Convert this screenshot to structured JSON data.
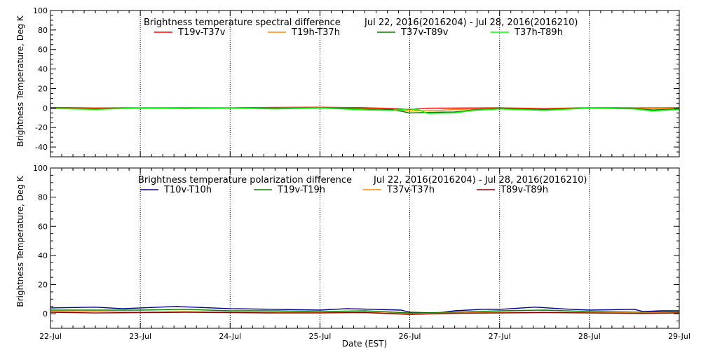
{
  "chart_data": [
    {
      "type": "line",
      "title": "Brightness temperature spectral difference",
      "date_range": "Jul 22, 2016(2016204) - Jul 28, 2016(2016210)",
      "ylabel": "Brightness Temperature, Deg K",
      "xlabel": "",
      "ylim": [
        -50,
        100
      ],
      "yticks": [
        -40,
        -20,
        0,
        20,
        40,
        60,
        80,
        100
      ],
      "xlim": [
        0,
        7
      ],
      "xticks": [
        0,
        1,
        2,
        3,
        4,
        5,
        6,
        7
      ],
      "xtick_labels": [],
      "grid": "vertical dotted at day boundaries",
      "series": [
        {
          "name": "T19v-T37v",
          "color": "#ff0000",
          "points": [
            [
              0,
              0.5
            ],
            [
              0.5,
              0
            ],
            [
              1,
              0.3
            ],
            [
              1.5,
              0.2
            ],
            [
              2,
              0.3
            ],
            [
              2.5,
              0.6
            ],
            [
              3,
              0.8
            ],
            [
              3.5,
              0.3
            ],
            [
              3.8,
              -0.5
            ],
            [
              4,
              -1.5
            ],
            [
              4.2,
              -0.2
            ],
            [
              4.5,
              0
            ],
            [
              5,
              0.2
            ],
            [
              5.5,
              -0.5
            ],
            [
              6,
              0.3
            ],
            [
              6.5,
              0.1
            ],
            [
              7,
              0.2
            ]
          ]
        },
        {
          "name": "T19h-T37h",
          "color": "#ff8c00",
          "points": [
            [
              0,
              0
            ],
            [
              0.5,
              -0.8
            ],
            [
              1,
              0
            ],
            [
              1.5,
              -0.3
            ],
            [
              2,
              0
            ],
            [
              2.5,
              0
            ],
            [
              3,
              0.5
            ],
            [
              3.5,
              -0.5
            ],
            [
              3.8,
              -1.2
            ],
            [
              4,
              -3
            ],
            [
              4.3,
              -2.5
            ],
            [
              4.5,
              -1.5
            ],
            [
              5,
              -0.5
            ],
            [
              5.5,
              -1
            ],
            [
              6,
              0
            ],
            [
              6.5,
              -0.5
            ],
            [
              7,
              -0.3
            ]
          ]
        },
        {
          "name": "T37v-T89v",
          "color": "#008000",
          "points": [
            [
              0,
              -0.5
            ],
            [
              0.5,
              -1
            ],
            [
              1,
              0
            ],
            [
              1.5,
              -0.5
            ],
            [
              2,
              0
            ],
            [
              2.5,
              -0.5
            ],
            [
              3,
              0.3
            ],
            [
              3.5,
              -1
            ],
            [
              3.8,
              -1.5
            ],
            [
              4,
              -5
            ],
            [
              4.2,
              -4.5
            ],
            [
              4.5,
              -4
            ],
            [
              4.7,
              -2
            ],
            [
              5,
              -0.5
            ],
            [
              5.5,
              -1.5
            ],
            [
              6,
              0
            ],
            [
              6.5,
              -0.5
            ],
            [
              6.7,
              -2
            ],
            [
              7,
              -1
            ]
          ]
        },
        {
          "name": "T37h-T89h",
          "color": "#00ff00",
          "points": [
            [
              0,
              -0.5
            ],
            [
              0.5,
              -1.5
            ],
            [
              1,
              0.2
            ],
            [
              1.5,
              -0.5
            ],
            [
              2,
              0.2
            ],
            [
              2.5,
              -1
            ],
            [
              3,
              0
            ],
            [
              3.5,
              -2
            ],
            [
              3.8,
              -2.5
            ],
            [
              4,
              -1
            ],
            [
              4.1,
              -2
            ],
            [
              4.2,
              -5.5
            ],
            [
              4.5,
              -5
            ],
            [
              4.7,
              -2.5
            ],
            [
              5,
              -1
            ],
            [
              5.5,
              -2.5
            ],
            [
              6,
              0
            ],
            [
              6.5,
              -1
            ],
            [
              6.7,
              -3
            ],
            [
              6.8,
              -2.5
            ],
            [
              7,
              -1.5
            ]
          ]
        }
      ]
    },
    {
      "type": "line",
      "title": "Brightness temperature polarization difference",
      "date_range": "Jul 22, 2016(2016204) - Jul 28, 2016(2016210)",
      "ylabel": "Brightness Temperature, Deg K",
      "xlabel": "Date (EST)",
      "ylim": [
        -10,
        100
      ],
      "yticks": [
        0,
        20,
        40,
        60,
        80,
        100
      ],
      "xlim": [
        0,
        7
      ],
      "xticks": [
        0,
        1,
        2,
        3,
        4,
        5,
        6,
        7
      ],
      "xtick_labels": [
        "22-Jul",
        "23-Jul",
        "24-Jul",
        "25-Jul",
        "26-Jul",
        "27-Jul",
        "28-Jul",
        "29-Jul"
      ],
      "grid": "vertical dotted at day boundaries",
      "series": [
        {
          "name": "T10v-T10h",
          "color": "#00008b",
          "points": [
            [
              0,
              4
            ],
            [
              0.5,
              4.5
            ],
            [
              0.8,
              3.5
            ],
            [
              1,
              4
            ],
            [
              1.4,
              5
            ],
            [
              1.8,
              4
            ],
            [
              2,
              3.5
            ],
            [
              2.5,
              3
            ],
            [
              3,
              2.5
            ],
            [
              3.3,
              3.5
            ],
            [
              3.6,
              3
            ],
            [
              3.9,
              2.5
            ],
            [
              4,
              1
            ],
            [
              4.3,
              0.5
            ],
            [
              4.5,
              2
            ],
            [
              4.8,
              3
            ],
            [
              5,
              3
            ],
            [
              5.4,
              4.5
            ],
            [
              5.8,
              3
            ],
            [
              6,
              2.5
            ],
            [
              6.5,
              3
            ],
            [
              6.6,
              1.5
            ],
            [
              6.8,
              2
            ],
            [
              7,
              2
            ]
          ]
        },
        {
          "name": "T19v-T19h",
          "color": "#008000",
          "points": [
            [
              0,
              2.5
            ],
            [
              0.5,
              2.5
            ],
            [
              1,
              2.5
            ],
            [
              1.5,
              3
            ],
            [
              2,
              2
            ],
            [
              2.5,
              2
            ],
            [
              3,
              1.5
            ],
            [
              3.5,
              2
            ],
            [
              4,
              0.5
            ],
            [
              4.5,
              1
            ],
            [
              5,
              2
            ],
            [
              5.5,
              2.5
            ],
            [
              6,
              1.5
            ],
            [
              6.6,
              1
            ],
            [
              7,
              1.5
            ]
          ]
        },
        {
          "name": "T37v-T37h",
          "color": "#ff8c00",
          "points": [
            [
              0,
              1.5
            ],
            [
              0.5,
              1.5
            ],
            [
              1,
              1
            ],
            [
              1.5,
              1.5
            ],
            [
              2,
              1
            ],
            [
              2.5,
              1
            ],
            [
              3,
              1
            ],
            [
              3.5,
              1
            ],
            [
              4,
              0
            ],
            [
              4.5,
              0.5
            ],
            [
              5,
              1
            ],
            [
              5.5,
              1
            ],
            [
              6,
              0.8
            ],
            [
              6.6,
              0.5
            ],
            [
              7,
              1
            ]
          ]
        },
        {
          "name": "T89v-T89h",
          "color": "#8b0000",
          "points": [
            [
              0,
              1
            ],
            [
              0.5,
              0.5
            ],
            [
              1,
              0.8
            ],
            [
              1.5,
              1
            ],
            [
              2,
              0.8
            ],
            [
              2.5,
              0.5
            ],
            [
              3,
              0.5
            ],
            [
              3.5,
              0.8
            ],
            [
              4,
              -0.5
            ],
            [
              4.5,
              0.3
            ],
            [
              5,
              0.5
            ],
            [
              5.5,
              0.8
            ],
            [
              6,
              0.5
            ],
            [
              6.6,
              0.2
            ],
            [
              7,
              0.5
            ]
          ]
        }
      ]
    }
  ]
}
